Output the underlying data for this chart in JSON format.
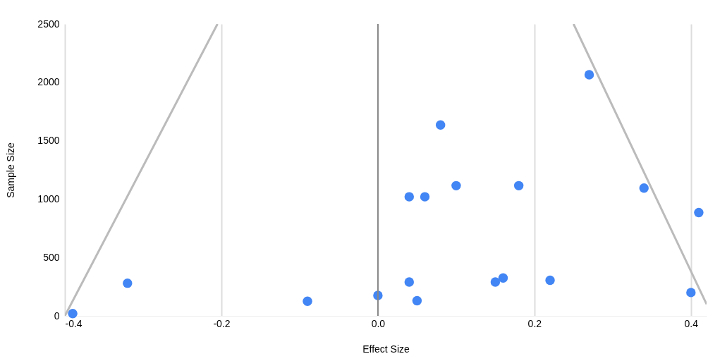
{
  "chart_data": {
    "type": "scatter",
    "xlabel": "Effect Size",
    "ylabel": "Sample Size",
    "xlim": [
      -0.4,
      0.42
    ],
    "ylim": [
      0,
      2500
    ],
    "xticks": [
      -0.4,
      {
        "value": -0.2,
        "label": "-0.2"
      },
      {
        "value": 0,
        "label": "0.0"
      },
      {
        "value": 0.2,
        "label": "0.2"
      },
      {
        "value": 0.4,
        "label": "0.4"
      }
    ],
    "yticks": [
      0,
      500,
      1000,
      1500,
      2000,
      2500
    ],
    "grid": "x",
    "ref_lines": [
      {
        "axis": "x",
        "value": 0,
        "color": "#888888"
      }
    ],
    "series": [
      {
        "color": "#4285f4",
        "marker": "circle",
        "x": [
          -0.39,
          -0.32,
          -0.09,
          0.0,
          0.04,
          0.05,
          0.04,
          0.06,
          0.08,
          0.1,
          0.15,
          0.16,
          0.18,
          0.22,
          0.27,
          0.34,
          0.4,
          0.41
        ],
        "values": [
          20,
          280,
          125,
          175,
          290,
          130,
          1020,
          1020,
          1635,
          1115,
          290,
          325,
          1115,
          305,
          2065,
          1095,
          200,
          885
        ]
      },
      {
        "type": "line",
        "color": "#bbbbbb",
        "x": [
          -0.4,
          -0.205
        ],
        "values": [
          0,
          2500
        ]
      },
      {
        "type": "line",
        "color": "#bbbbbb",
        "x": [
          0.25,
          0.42
        ],
        "values": [
          2500,
          100
        ]
      }
    ]
  }
}
